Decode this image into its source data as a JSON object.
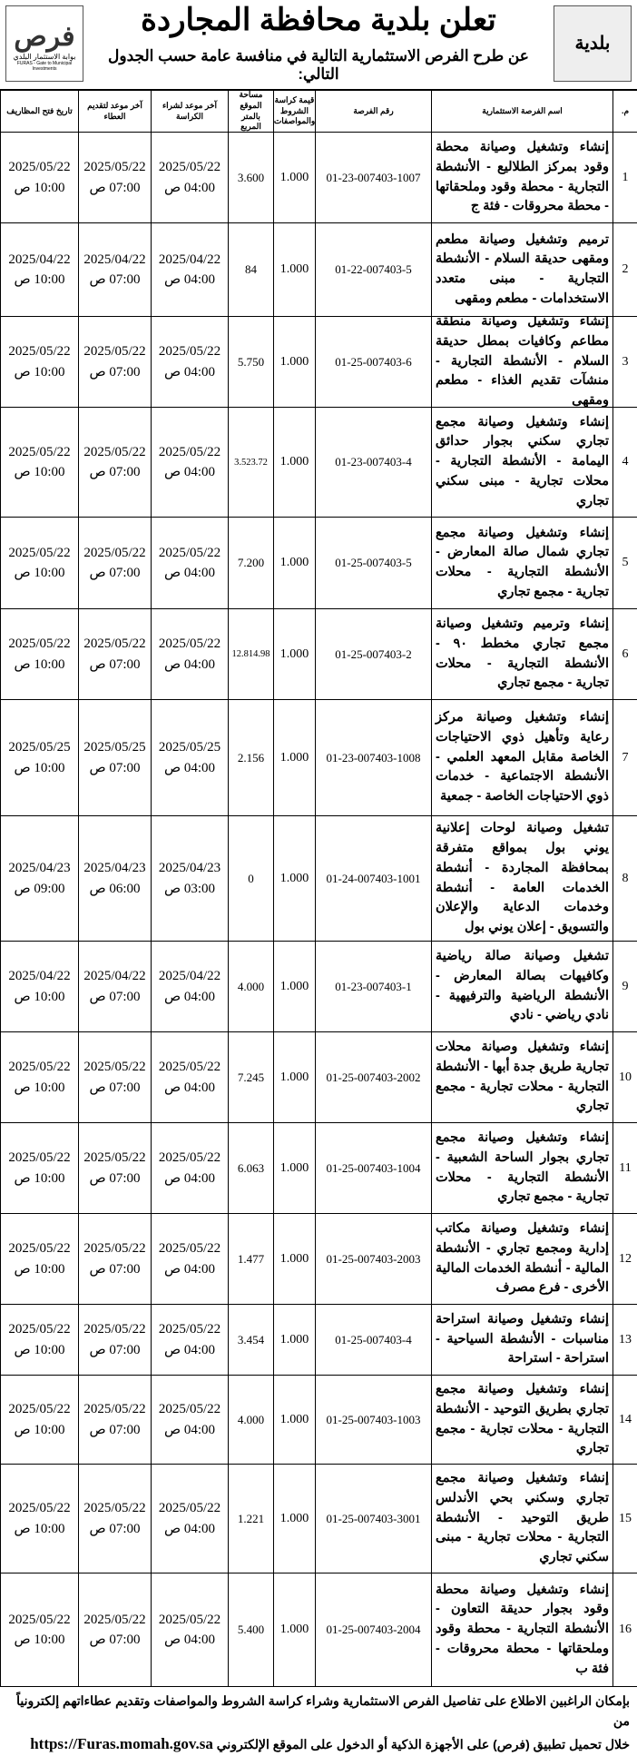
{
  "header": {
    "title": "تعلن بلدية محافظة المجاردة",
    "subtitle": "عن طرح الفرص الاستثمارية التالية في منافسة عامة حسب الجدول التالي:",
    "logo_left": {
      "name": "فرص",
      "tagline": "بوابة الاستثمار البلدي",
      "english": "FURAS - Gate to Municipal Investments"
    },
    "logo_right": "بلدية"
  },
  "table": {
    "headers": [
      "م.",
      "اسم الفرصة الاستثمارية",
      "رقم الفرصة",
      "قيمة كراسة الشروط والمواصفات",
      "مساحة الموقع بالمتر المربع",
      "آخر موعد لشراء الكراسة",
      "آخر موعد لتقديم العطاء",
      "تاريخ فتح المظاريف"
    ],
    "rows": [
      {
        "no": "1",
        "name": "إنشاء وتشغيل وصيانة محطة وقود بمركز الطلاليع - الأنشطة التجارية - محطة وقود وملحقاتها - محطة محروقات - فئة ج",
        "id": "01-23-007403-1007",
        "fee": "1.000",
        "area": "3.600",
        "buy": {
          "date": "2025/05/22",
          "time": "04:00 ص"
        },
        "submit": {
          "date": "2025/05/22",
          "time": "07:00 ص"
        },
        "open": {
          "date": "2025/05/22",
          "time": "10:00 ص"
        }
      },
      {
        "no": "2",
        "name": "ترميم وتشغيل وصيانة مطعم ومقهى حديقة السلام - الأنشطة التجارية - مبنى متعدد الاستخدامات - مطعم ومقهى",
        "id": "01-22-007403-5",
        "fee": "1.000",
        "area": "84",
        "buy": {
          "date": "2025/04/22",
          "time": "04:00 ص"
        },
        "submit": {
          "date": "2025/04/22",
          "time": "07:00 ص"
        },
        "open": {
          "date": "2025/04/22",
          "time": "10:00 ص"
        }
      },
      {
        "no": "3",
        "name": "إنشاء وتشغيل وصيانة منطقة مطاعم وكافيات بمطل حديقة السلام - الأنشطة التجارية - منشآت تقديم الغذاء - مطعم ومقهى",
        "id": "01-25-007403-6",
        "fee": "1.000",
        "area": "5.750",
        "buy": {
          "date": "2025/05/22",
          "time": "04:00 ص"
        },
        "submit": {
          "date": "2025/05/22",
          "time": "07:00 ص"
        },
        "open": {
          "date": "2025/05/22",
          "time": "10:00 ص"
        }
      },
      {
        "no": "4",
        "name": "إنشاء وتشغيل وصيانة مجمع تجاري سكني بجوار حدائق اليمامة - الأنشطة التجارية - محلات تجارية - مبنى سكني تجاري",
        "id": "01-23-007403-4",
        "fee": "1.000",
        "area": "3.523.72",
        "buy": {
          "date": "2025/05/22",
          "time": "04:00 ص"
        },
        "submit": {
          "date": "2025/05/22",
          "time": "07:00 ص"
        },
        "open": {
          "date": "2025/05/22",
          "time": "10:00 ص"
        }
      },
      {
        "no": "5",
        "name": "إنشاء وتشغيل وصيانة مجمع تجاري شمال صالة المعارض - الأنشطة التجارية - محلات تجارية - مجمع تجاري",
        "id": "01-25-007403-5",
        "fee": "1.000",
        "area": "7.200",
        "buy": {
          "date": "2025/05/22",
          "time": "04:00 ص"
        },
        "submit": {
          "date": "2025/05/22",
          "time": "07:00 ص"
        },
        "open": {
          "date": "2025/05/22",
          "time": "10:00 ص"
        }
      },
      {
        "no": "6",
        "name": "إنشاء وترميم وتشغيل وصيانة مجمع تجاري مخطط ٩٠ - الأنشطة التجارية - محلات تجارية - مجمع تجاري",
        "id": "01-25-007403-2",
        "fee": "1.000",
        "area": "12.814.98",
        "buy": {
          "date": "2025/05/22",
          "time": "04:00 ص"
        },
        "submit": {
          "date": "2025/05/22",
          "time": "07:00 ص"
        },
        "open": {
          "date": "2025/05/22",
          "time": "10:00 ص"
        }
      },
      {
        "no": "7",
        "name": "إنشاء وتشغيل وصيانة مركز رعاية وتأهيل ذوي الاحتياجات الخاصة مقابل المعهد العلمي - الأنشطة الاجتماعية - خدمات ذوي الاحتياجات الخاصة - جمعية",
        "id": "01-23-007403-1008",
        "fee": "1.000",
        "area": "2.156",
        "buy": {
          "date": "2025/05/25",
          "time": "04:00 ص"
        },
        "submit": {
          "date": "2025/05/25",
          "time": "07:00 ص"
        },
        "open": {
          "date": "2025/05/25",
          "time": "10:00 ص"
        }
      },
      {
        "no": "8",
        "name": "تشغيل وصيانة لوحات إعلانية يوني بول بمواقع متفرقة بمحافظة المجاردة - أنشطة الخدمات العامة - أنشطة وخدمات الدعاية والإعلان والتسويق - إعلان يوني بول",
        "id": "01-24-007403-1001",
        "fee": "1.000",
        "area": "0",
        "buy": {
          "date": "2025/04/23",
          "time": "03:00 ص"
        },
        "submit": {
          "date": "2025/04/23",
          "time": "06:00 ص"
        },
        "open": {
          "date": "2025/04/23",
          "time": "09:00 ص"
        }
      },
      {
        "no": "9",
        "name": "تشغيل وصيانة صالة رياضية وكافيهات بصالة المعارض - الأنشطة الرياضية والترفيهية - نادي رياضي - نادي",
        "id": "01-23-007403-1",
        "fee": "1.000",
        "area": "4.000",
        "buy": {
          "date": "2025/04/22",
          "time": "04:00 ص"
        },
        "submit": {
          "date": "2025/04/22",
          "time": "07:00 ص"
        },
        "open": {
          "date": "2025/04/22",
          "time": "10:00 ص"
        }
      },
      {
        "no": "10",
        "name": "إنشاء وتشغيل وصيانة محلات تجارية طريق جدة أبها - الأنشطة التجارية - محلات تجارية - مجمع تجاري",
        "id": "01-25-007403-2002",
        "fee": "1.000",
        "area": "7.245",
        "buy": {
          "date": "2025/05/22",
          "time": "04:00 ص"
        },
        "submit": {
          "date": "2025/05/22",
          "time": "07:00 ص"
        },
        "open": {
          "date": "2025/05/22",
          "time": "10:00 ص"
        }
      },
      {
        "no": "11",
        "name": "إنشاء وتشغيل وصيانة مجمع تجاري بجوار الساحة الشعبية - الأنشطة التجارية - محلات تجارية - مجمع تجاري",
        "id": "01-25-007403-1004",
        "fee": "1.000",
        "area": "6.063",
        "buy": {
          "date": "2025/05/22",
          "time": "04:00 ص"
        },
        "submit": {
          "date": "2025/05/22",
          "time": "07:00 ص"
        },
        "open": {
          "date": "2025/05/22",
          "time": "10:00 ص"
        }
      },
      {
        "no": "12",
        "name": "إنشاء وتشغيل وصيانة مكاتب إدارية ومجمع تجاري - الأنشطة المالية - أنشطة الخدمات المالية الأخرى - فرع مصرف",
        "id": "01-25-007403-2003",
        "fee": "1.000",
        "area": "1.477",
        "buy": {
          "date": "2025/05/22",
          "time": "04:00 ص"
        },
        "submit": {
          "date": "2025/05/22",
          "time": "07:00 ص"
        },
        "open": {
          "date": "2025/05/22",
          "time": "10:00 ص"
        }
      },
      {
        "no": "13",
        "name": "إنشاء وتشغيل وصيانة استراحة مناسبات - الأنشطة السياحية - استراحة - استراحة",
        "id": "01-25-007403-4",
        "fee": "1.000",
        "area": "3.454",
        "buy": {
          "date": "2025/05/22",
          "time": "04:00 ص"
        },
        "submit": {
          "date": "2025/05/22",
          "time": "07:00 ص"
        },
        "open": {
          "date": "2025/05/22",
          "time": "10:00 ص"
        }
      },
      {
        "no": "14",
        "name": "إنشاء وتشغيل وصيانة مجمع تجاري بطريق التوحيد - الأنشطة التجارية - محلات تجارية - مجمع تجاري",
        "id": "01-25-007403-1003",
        "fee": "1.000",
        "area": "4.000",
        "buy": {
          "date": "2025/05/22",
          "time": "04:00 ص"
        },
        "submit": {
          "date": "2025/05/22",
          "time": "07:00 ص"
        },
        "open": {
          "date": "2025/05/22",
          "time": "10:00 ص"
        }
      },
      {
        "no": "15",
        "name": "إنشاء وتشغيل وصيانة مجمع تجاري وسكني بحي الأندلس طريق التوحيد - الأنشطة التجارية - محلات تجارية - مبنى سكني تجاري",
        "id": "01-25-007403-3001",
        "fee": "1.000",
        "area": "1.221",
        "buy": {
          "date": "2025/05/22",
          "time": "04:00 ص"
        },
        "submit": {
          "date": "2025/05/22",
          "time": "07:00 ص"
        },
        "open": {
          "date": "2025/05/22",
          "time": "10:00 ص"
        }
      },
      {
        "no": "16",
        "name": "إنشاء وتشغيل وصيانة محطة وقود بجوار حديقة التعاون - الأنشطة التجارية - محطة وقود وملحقاتها - محطة محروقات - فئة ب",
        "id": "01-25-007403-2004",
        "fee": "1.000",
        "area": "5.400",
        "buy": {
          "date": "2025/05/22",
          "time": "04:00 ص"
        },
        "submit": {
          "date": "2025/05/22",
          "time": "07:00 ص"
        },
        "open": {
          "date": "2025/05/22",
          "time": "10:00 ص"
        }
      }
    ]
  },
  "footer": {
    "line1": "بإمكان الراغبين الاطلاع على تفاصيل الفرص الاستثمارية وشراء كراسة الشروط والمواصفات وتقديم عطاءاتهم إلكترونياً من",
    "line2": "خلال تحميل تطبيق (فرص) على الأجهزة الذكية أو الدخول على الموقع الإلكتروني",
    "url": "https://Furas.momah.gov.sa"
  }
}
